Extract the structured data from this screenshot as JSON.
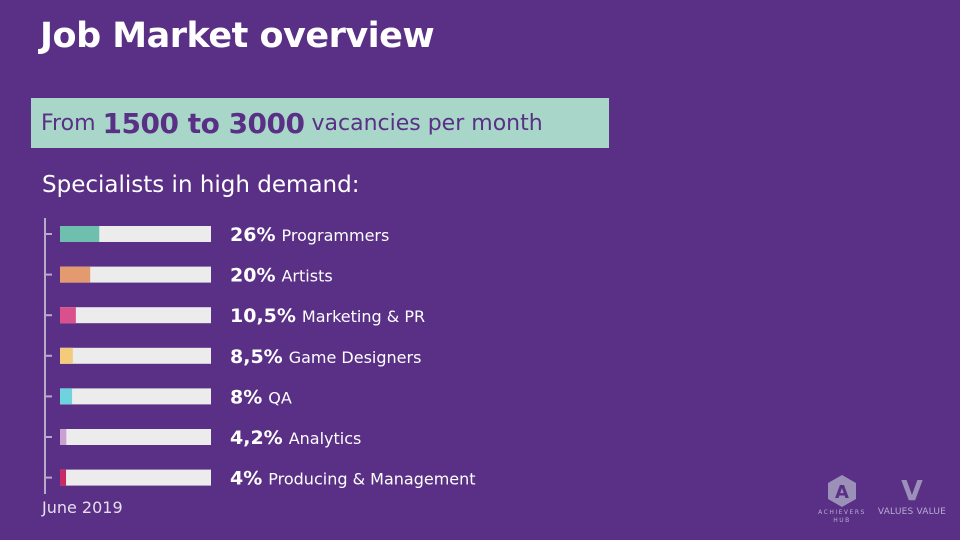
{
  "header": {
    "title": "Job Market overview"
  },
  "banner": {
    "prefix": "From",
    "highlight": "1500 to 3000",
    "suffix": "vacancies per month",
    "bg_color": "#a8d6c8"
  },
  "subtitle": "Specialists in high demand:",
  "footer": {
    "date": "June 2019"
  },
  "logos": {
    "achievers_mark": "A",
    "achievers_caption_1": "ACHIEVERS",
    "achievers_caption_2": "HUB",
    "values_mark": "V",
    "values_caption": "VALUES VALUE"
  },
  "chart_data": {
    "type": "bar",
    "orientation": "horizontal",
    "xlim": [
      0,
      100
    ],
    "grid": false,
    "categories": [
      "Programmers",
      "Artists",
      "Marketing & PR",
      "Game Designers",
      "QA",
      "Analytics",
      "Producing & Management"
    ],
    "values": [
      26,
      20,
      10.5,
      8.5,
      8,
      4.2,
      4
    ],
    "value_labels": [
      "26%",
      "20%",
      "10,5%",
      "8,5%",
      "8%",
      "4,2%",
      "4%"
    ],
    "colors": [
      "#6fbfaf",
      "#e29a6e",
      "#d9508c",
      "#f3cb7a",
      "#6fd3dd",
      "#c9a0d0",
      "#c82a68"
    ],
    "track_color": "#ececec"
  }
}
